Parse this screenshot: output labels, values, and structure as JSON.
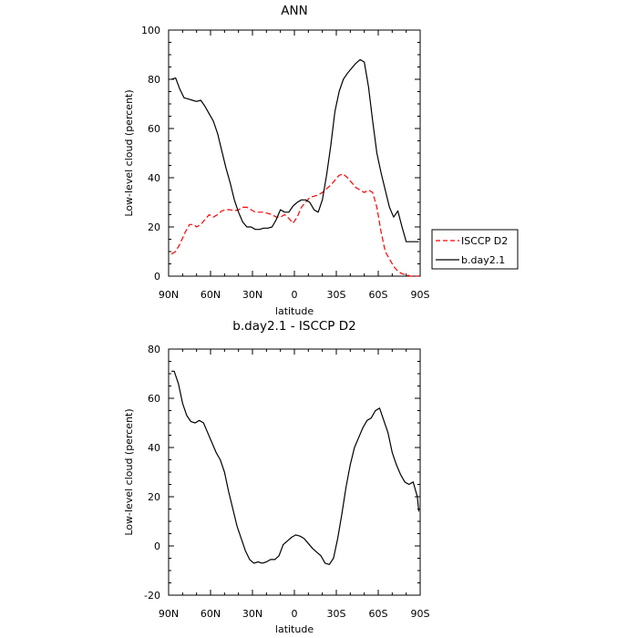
{
  "chart_data": [
    {
      "type": "line",
      "title": "ANN",
      "xlabel": "latitude",
      "ylabel": "Low-level cloud (percent)",
      "xlim": [
        90,
        -90
      ],
      "ylim": [
        0,
        100
      ],
      "x_tick_values": [
        90,
        60,
        30,
        0,
        -30,
        -60,
        -90
      ],
      "x_tick_labels": [
        "90N",
        "60N",
        "30N",
        "0",
        "30S",
        "60S",
        "90S"
      ],
      "y_ticks": [
        0,
        20,
        40,
        60,
        80,
        100
      ],
      "legend": {
        "position": "right",
        "entries": [
          "ISCCP D2",
          "b.day2.1"
        ]
      },
      "series": [
        {
          "name": "ISCCP D2",
          "color": "#ff0000",
          "dash": "dashed",
          "x": [
            88,
            85,
            82,
            78,
            75,
            72,
            70,
            67,
            64,
            61,
            58,
            55,
            52,
            49,
            46,
            43,
            40,
            37,
            34,
            31,
            28,
            25,
            22,
            19,
            16,
            13,
            10,
            7,
            4,
            1,
            -2,
            -5,
            -8,
            -11,
            -14,
            -17,
            -20,
            -23,
            -26,
            -29,
            -32,
            -35,
            -38,
            -41,
            -44,
            -47,
            -50,
            -53,
            -56,
            -59,
            -62,
            -65,
            -68,
            -71,
            -74,
            -77,
            -80,
            -83,
            -86,
            -89
          ],
          "y": [
            9,
            10,
            13,
            18,
            21,
            21,
            20,
            21,
            23,
            25,
            24,
            25,
            26.5,
            27,
            27,
            26.5,
            27,
            28,
            28,
            27,
            26,
            26,
            26,
            25.5,
            25,
            24,
            24,
            25,
            23.5,
            21.5,
            24,
            28,
            30,
            32,
            32.5,
            33,
            34,
            35.5,
            37,
            39,
            41,
            41.5,
            40,
            38,
            36,
            35,
            34,
            35,
            34,
            28,
            18,
            10,
            7,
            4,
            2,
            1,
            0.5,
            0,
            0,
            0
          ]
        },
        {
          "name": "b.day2.1",
          "color": "#000000",
          "dash": "solid",
          "x": [
            88,
            85,
            82,
            79,
            76,
            73,
            70,
            67,
            64,
            61,
            58,
            55,
            52,
            49,
            46,
            43,
            40,
            37,
            34,
            31,
            28,
            25,
            22,
            19,
            16,
            13,
            10,
            7,
            4,
            1,
            -2,
            -5,
            -8,
            -11,
            -14,
            -17,
            -20,
            -23,
            -26,
            -29,
            -32,
            -35,
            -38,
            -41,
            -44,
            -47,
            -50,
            -53,
            -56,
            -59,
            -62,
            -65,
            -68,
            -71,
            -74,
            -77,
            -80,
            -83,
            -86,
            -89
          ],
          "y": [
            80,
            80.5,
            76,
            72.5,
            72,
            71.5,
            71,
            71.5,
            69,
            66,
            63,
            58,
            51,
            44,
            38,
            31,
            26,
            22,
            20,
            20,
            19,
            19,
            19.5,
            19.5,
            20,
            23,
            27,
            26,
            26,
            28.5,
            30,
            31,
            31,
            30,
            27,
            26,
            31,
            41,
            53,
            67,
            75,
            80,
            82.5,
            84.5,
            86.5,
            88,
            87,
            77,
            63,
            50,
            42,
            35,
            28,
            24,
            26.5,
            20,
            14,
            14,
            14,
            14
          ]
        }
      ]
    },
    {
      "type": "line",
      "title": "b.day2.1 - ISCCP D2",
      "xlabel": "latitude",
      "ylabel": "Low-level cloud (percent)",
      "xlim": [
        90,
        -90
      ],
      "ylim": [
        -20,
        80
      ],
      "x_tick_values": [
        90,
        60,
        30,
        0,
        -30,
        -60,
        -90
      ],
      "x_tick_labels": [
        "90N",
        "60N",
        "30N",
        "0",
        "30S",
        "60S",
        "90S"
      ],
      "y_ticks": [
        -20,
        0,
        20,
        40,
        60,
        80
      ],
      "series": [
        {
          "color": "#000000",
          "dash": "solid",
          "x": [
            88,
            86,
            83,
            80,
            77,
            74,
            71,
            68,
            65,
            62,
            59,
            56,
            53,
            50,
            47,
            44,
            41,
            38,
            35,
            32,
            29,
            26,
            23,
            20,
            17,
            14,
            11,
            8,
            5,
            2,
            -1,
            -4,
            -7,
            -10,
            -13,
            -16,
            -19,
            -22,
            -25,
            -28,
            -31,
            -34,
            -37,
            -40,
            -43,
            -46,
            -49,
            -52,
            -55,
            -58,
            -61,
            -64,
            -67,
            -70,
            -73,
            -76,
            -79,
            -82,
            -85,
            -88,
            -89
          ],
          "y": [
            71,
            71,
            66,
            58,
            53,
            50.5,
            50,
            51,
            50,
            46,
            42,
            38,
            35,
            30,
            22,
            15,
            8,
            3,
            -2,
            -5.5,
            -7,
            -6.5,
            -7,
            -6.5,
            -5.5,
            -5.5,
            -4,
            0.5,
            2,
            3.5,
            4.5,
            4,
            3,
            1,
            -1,
            -2.5,
            -4,
            -7,
            -7.5,
            -5,
            3,
            13,
            24,
            33,
            40,
            44,
            48,
            51,
            52,
            55,
            56,
            51,
            46,
            38,
            33,
            29,
            26,
            25,
            26,
            20,
            14
          ]
        }
      ]
    }
  ]
}
